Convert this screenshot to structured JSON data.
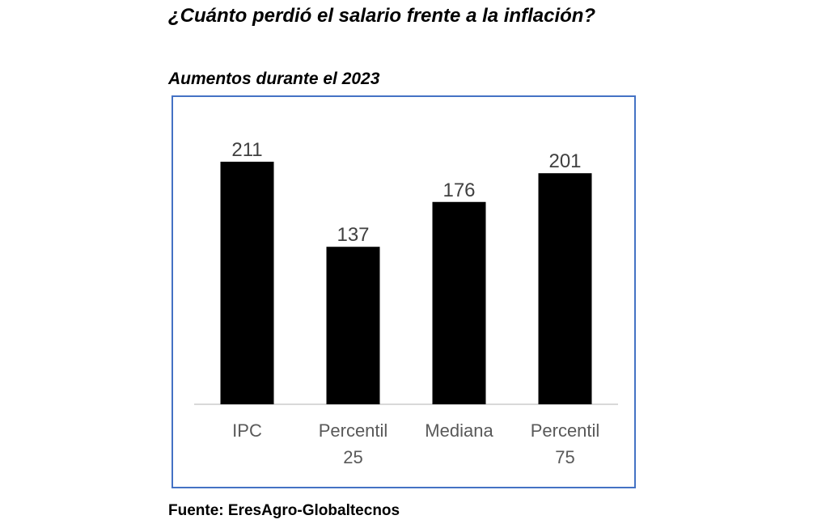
{
  "title": "¿Cuánto perdió el salario frente a la inflación?",
  "subtitle": "Aumentos durante el 2023",
  "source": "Fuente: EresAgro-Globaltecnos",
  "colors": {
    "bar": "#000000",
    "frame_border": "#4472c4",
    "axis": "#d9d9d9",
    "label_text": "#404040",
    "category_text": "#595959"
  },
  "chart_data": {
    "type": "bar",
    "title": "Aumentos durante el 2023",
    "categories": [
      [
        "IPC"
      ],
      [
        "Percentil",
        "25"
      ],
      [
        "Mediana"
      ],
      [
        "Percentil",
        "75"
      ]
    ],
    "values": [
      211,
      137,
      176,
      201
    ],
    "data_labels": [
      "211",
      "137",
      "176",
      "201"
    ],
    "xlabel": "",
    "ylabel": "",
    "ylim": [
      0,
      211
    ],
    "grid": false,
    "legend": "none"
  }
}
